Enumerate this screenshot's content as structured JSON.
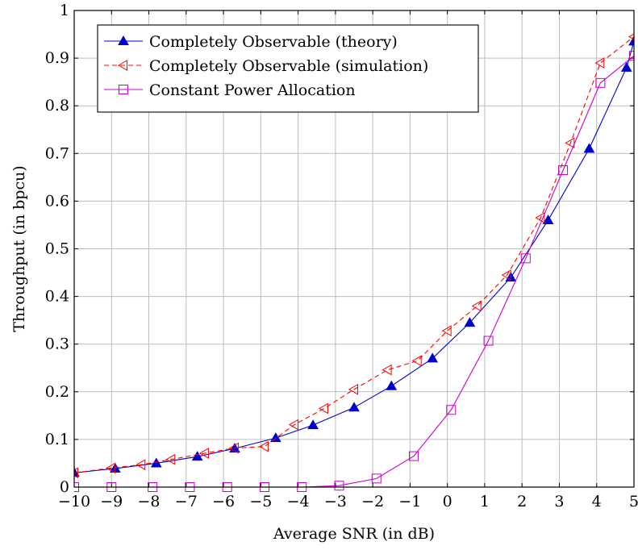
{
  "chart_data": {
    "type": "line",
    "title": "",
    "xlabel": "Average SNR (in dB)",
    "ylabel": "Throughput (in bpcu)",
    "xlim": [
      -10,
      5
    ],
    "ylim": [
      0,
      1
    ],
    "xticks": [
      -10,
      -9,
      -8,
      -7,
      -6,
      -5,
      -4,
      -3,
      -2,
      -1,
      0,
      1,
      2,
      3,
      4,
      5
    ],
    "xtick_labels": [
      "−10",
      "−9",
      "−8",
      "−7",
      "−6",
      "−5",
      "−4",
      "−3",
      "−2",
      "−1",
      "0",
      "1",
      "2",
      "3",
      "4",
      "5"
    ],
    "yticks": [
      0,
      0.1,
      0.2,
      0.3,
      0.4,
      0.5,
      0.6,
      0.7,
      0.8,
      0.9,
      1
    ],
    "ytick_labels": [
      "0",
      "0.1",
      "0.2",
      "0.3",
      "0.4",
      "0.5",
      "0.6",
      "0.7",
      "0.8",
      "0.9",
      "1"
    ],
    "grid": true,
    "legend_position": "top-left",
    "series": [
      {
        "name": "Completely Observable (theory)",
        "color": "#0000cc",
        "line_style": "solid",
        "marker": "triangle-up-filled",
        "x": [
          -10,
          -8.9,
          -7.8,
          -6.7,
          -5.7,
          -4.6,
          -3.6,
          -2.5,
          -1.5,
          -0.4,
          0.6,
          1.7,
          2.7,
          3.8,
          4.8,
          5
        ],
        "y": [
          0.03,
          0.039,
          0.05,
          0.064,
          0.081,
          0.103,
          0.13,
          0.167,
          0.212,
          0.27,
          0.345,
          0.44,
          0.56,
          0.71,
          0.88,
          0.935
        ]
      },
      {
        "name": "Completely Observable (simulation)",
        "color": "#ff0000",
        "line_style": "dashed",
        "marker": "triangle-left-open",
        "x": [
          -10,
          -9,
          -8.2,
          -7.4,
          -6.5,
          -5.7,
          -4.9,
          -4.1,
          -3.3,
          -2.5,
          -1.6,
          -0.8,
          0,
          0.8,
          1.6,
          2.5,
          3.3,
          4.1,
          5
        ],
        "y": [
          0.03,
          0.04,
          0.047,
          0.058,
          0.071,
          0.082,
          0.085,
          0.131,
          0.165,
          0.205,
          0.246,
          0.265,
          0.328,
          0.38,
          0.445,
          0.565,
          0.722,
          0.89,
          0.945
        ]
      },
      {
        "name": "Constant Power Allocation",
        "color": "#cc00cc",
        "line_style": "solid",
        "marker": "square-open",
        "x": [
          -10,
          -9,
          -7.9,
          -6.9,
          -5.9,
          -4.9,
          -3.9,
          -2.9,
          -1.9,
          -0.9,
          0.1,
          1.1,
          2.1,
          3.1,
          4.1,
          5
        ],
        "y": [
          0,
          0,
          0,
          0,
          0,
          0,
          0,
          0.003,
          0.018,
          0.065,
          0.162,
          0.307,
          0.48,
          0.665,
          0.848,
          0.905
        ]
      }
    ]
  }
}
